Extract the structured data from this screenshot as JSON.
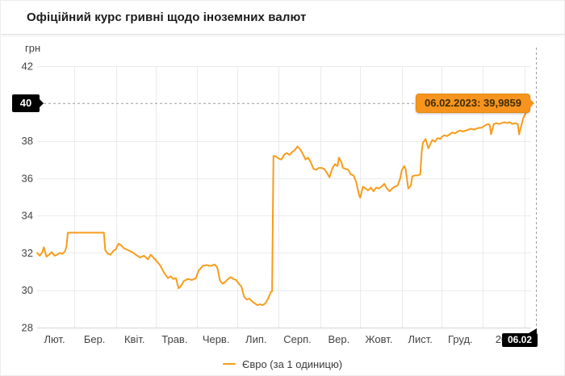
{
  "header": {
    "title": "Офіційний курс гривні щодо іноземних валют"
  },
  "chart": {
    "unit_label": "грн",
    "current_value_badge": "40",
    "current_date_badge": "06.02",
    "tooltip": "06.02.2023: 39,9859",
    "legend": "Євро (за 1 одиницю)",
    "colors": {
      "line": "#f89c1b",
      "tooltip_bg": "#f7941e",
      "tooltip_border": "#e5890a",
      "grid": "#ebebeb",
      "axis_line": "#d6d6d6",
      "axis_text": "#424242",
      "dashed": "#9c9c9c",
      "badge_bg": "#000000"
    }
  },
  "chart_data": {
    "type": "line",
    "title": "Офіційний курс гривні щодо іноземних валют",
    "ylabel": "грн",
    "xlabel": "",
    "ylim": [
      28,
      42
    ],
    "y_ticks": [
      28,
      30,
      32,
      34,
      36,
      38,
      40,
      42
    ],
    "grid": true,
    "legend_position": "bottom",
    "x_domain_days": [
      0,
      370
    ],
    "x_axis_note": "days since 2022-02-01; last point = 06.02.2023",
    "x_ticks": [
      {
        "label": "Лют.",
        "day": 13
      },
      {
        "label": "Бер.",
        "day": 43
      },
      {
        "label": "Квіт.",
        "day": 73
      },
      {
        "label": "Трав.",
        "day": 103
      },
      {
        "label": "Черв.",
        "day": 134
      },
      {
        "label": "Лип.",
        "day": 164
      },
      {
        "label": "Серп.",
        "day": 195
      },
      {
        "label": "Вер.",
        "day": 226
      },
      {
        "label": "Жовт.",
        "day": 256
      },
      {
        "label": "Лист.",
        "day": 287
      },
      {
        "label": "Груд.",
        "day": 317
      },
      {
        "label": "2023",
        "day": 352
      }
    ],
    "month_gridline_days": [
      28,
      59,
      89,
      120,
      150,
      181,
      212,
      242,
      273,
      303,
      334,
      365
    ],
    "highlight": {
      "date": "06.02.2023",
      "value": 39.9859,
      "value_line": 40,
      "label": "06.02.2023: 39,9859",
      "date_short": "06.02"
    },
    "series": [
      {
        "name": "Євро (за 1 одиницю)",
        "color": "#f89c1b",
        "points": [
          [
            0,
            32.0
          ],
          [
            2,
            31.85
          ],
          [
            4,
            32.05
          ],
          [
            5,
            32.3
          ],
          [
            7,
            31.8
          ],
          [
            9,
            31.9
          ],
          [
            11,
            32.05
          ],
          [
            13,
            31.85
          ],
          [
            15,
            31.9
          ],
          [
            17,
            32.0
          ],
          [
            19,
            31.95
          ],
          [
            21,
            32.1
          ],
          [
            22,
            32.35
          ],
          [
            23,
            33.08
          ],
          [
            50,
            33.08
          ],
          [
            51,
            32.15
          ],
          [
            53,
            31.95
          ],
          [
            55,
            31.9
          ],
          [
            57,
            32.1
          ],
          [
            59,
            32.2
          ],
          [
            61,
            32.5
          ],
          [
            63,
            32.4
          ],
          [
            65,
            32.25
          ],
          [
            68,
            32.15
          ],
          [
            71,
            32.05
          ],
          [
            74,
            31.9
          ],
          [
            77,
            31.75
          ],
          [
            80,
            31.85
          ],
          [
            83,
            31.65
          ],
          [
            85,
            31.9
          ],
          [
            87,
            31.75
          ],
          [
            89,
            31.6
          ],
          [
            92,
            31.35
          ],
          [
            95,
            30.95
          ],
          [
            98,
            30.65
          ],
          [
            100,
            30.75
          ],
          [
            102,
            30.6
          ],
          [
            104,
            30.65
          ],
          [
            106,
            30.1
          ],
          [
            108,
            30.25
          ],
          [
            110,
            30.5
          ],
          [
            113,
            30.6
          ],
          [
            116,
            30.55
          ],
          [
            119,
            30.65
          ],
          [
            121,
            31.05
          ],
          [
            124,
            31.3
          ],
          [
            127,
            31.35
          ],
          [
            130,
            31.3
          ],
          [
            133,
            31.38
          ],
          [
            135,
            31.2
          ],
          [
            137,
            30.5
          ],
          [
            139,
            30.35
          ],
          [
            141,
            30.45
          ],
          [
            143,
            30.6
          ],
          [
            145,
            30.7
          ],
          [
            147,
            30.6
          ],
          [
            149,
            30.55
          ],
          [
            151,
            30.35
          ],
          [
            153,
            30.2
          ],
          [
            155,
            29.65
          ],
          [
            157,
            29.5
          ],
          [
            159,
            29.55
          ],
          [
            161,
            29.4
          ],
          [
            163,
            29.3
          ],
          [
            165,
            29.2
          ],
          [
            167,
            29.25
          ],
          [
            169,
            29.2
          ],
          [
            171,
            29.3
          ],
          [
            173,
            29.55
          ],
          [
            175,
            29.9
          ],
          [
            176,
            29.95
          ],
          [
            177,
            37.2
          ],
          [
            179,
            37.15
          ],
          [
            181,
            37.05
          ],
          [
            183,
            37.0
          ],
          [
            185,
            37.25
          ],
          [
            187,
            37.35
          ],
          [
            189,
            37.25
          ],
          [
            191,
            37.4
          ],
          [
            193,
            37.5
          ],
          [
            195,
            37.7
          ],
          [
            197,
            37.55
          ],
          [
            199,
            37.3
          ],
          [
            201,
            37.0
          ],
          [
            203,
            37.1
          ],
          [
            205,
            36.85
          ],
          [
            207,
            36.5
          ],
          [
            209,
            36.45
          ],
          [
            211,
            36.55
          ],
          [
            213,
            36.55
          ],
          [
            215,
            36.5
          ],
          [
            217,
            36.3
          ],
          [
            219,
            36.05
          ],
          [
            221,
            36.5
          ],
          [
            223,
            36.75
          ],
          [
            225,
            36.65
          ],
          [
            226,
            37.1
          ],
          [
            228,
            36.85
          ],
          [
            229,
            36.55
          ],
          [
            231,
            36.5
          ],
          [
            233,
            36.45
          ],
          [
            235,
            36.2
          ],
          [
            237,
            36.15
          ],
          [
            239,
            35.8
          ],
          [
            241,
            35.15
          ],
          [
            242,
            34.95
          ],
          [
            244,
            35.55
          ],
          [
            246,
            35.45
          ],
          [
            248,
            35.35
          ],
          [
            250,
            35.5
          ],
          [
            252,
            35.3
          ],
          [
            254,
            35.5
          ],
          [
            256,
            35.45
          ],
          [
            258,
            35.55
          ],
          [
            260,
            35.7
          ],
          [
            262,
            35.45
          ],
          [
            264,
            35.3
          ],
          [
            266,
            35.45
          ],
          [
            268,
            35.55
          ],
          [
            270,
            35.6
          ],
          [
            272,
            36.0
          ],
          [
            273,
            36.4
          ],
          [
            275,
            36.65
          ],
          [
            276,
            36.5
          ],
          [
            278,
            35.45
          ],
          [
            280,
            35.6
          ],
          [
            281,
            36.1
          ],
          [
            283,
            36.15
          ],
          [
            285,
            36.15
          ],
          [
            287,
            36.2
          ],
          [
            288,
            37.4
          ],
          [
            289,
            37.9
          ],
          [
            291,
            38.1
          ],
          [
            293,
            37.6
          ],
          [
            295,
            37.9
          ],
          [
            296,
            38.05
          ],
          [
            298,
            37.95
          ],
          [
            300,
            38.15
          ],
          [
            302,
            38.1
          ],
          [
            303,
            38.2
          ],
          [
            305,
            38.3
          ],
          [
            307,
            38.25
          ],
          [
            309,
            38.35
          ],
          [
            311,
            38.45
          ],
          [
            313,
            38.4
          ],
          [
            315,
            38.5
          ],
          [
            317,
            38.55
          ],
          [
            319,
            38.5
          ],
          [
            321,
            38.55
          ],
          [
            323,
            38.6
          ],
          [
            325,
            38.65
          ],
          [
            327,
            38.6
          ],
          [
            329,
            38.65
          ],
          [
            331,
            38.7
          ],
          [
            333,
            38.7
          ],
          [
            334,
            38.75
          ],
          [
            336,
            38.85
          ],
          [
            338,
            38.9
          ],
          [
            339,
            38.85
          ],
          [
            340,
            38.35
          ],
          [
            342,
            38.9
          ],
          [
            344,
            38.95
          ],
          [
            346,
            38.9
          ],
          [
            348,
            38.95
          ],
          [
            350,
            39.0
          ],
          [
            352,
            38.95
          ],
          [
            354,
            39.0
          ],
          [
            356,
            38.9
          ],
          [
            358,
            38.95
          ],
          [
            360,
            38.9
          ],
          [
            361,
            38.35
          ],
          [
            363,
            38.9
          ],
          [
            364,
            39.2
          ],
          [
            366,
            39.5
          ],
          [
            368,
            39.7
          ],
          [
            369,
            39.8
          ],
          [
            370,
            39.9859
          ]
        ]
      }
    ]
  }
}
